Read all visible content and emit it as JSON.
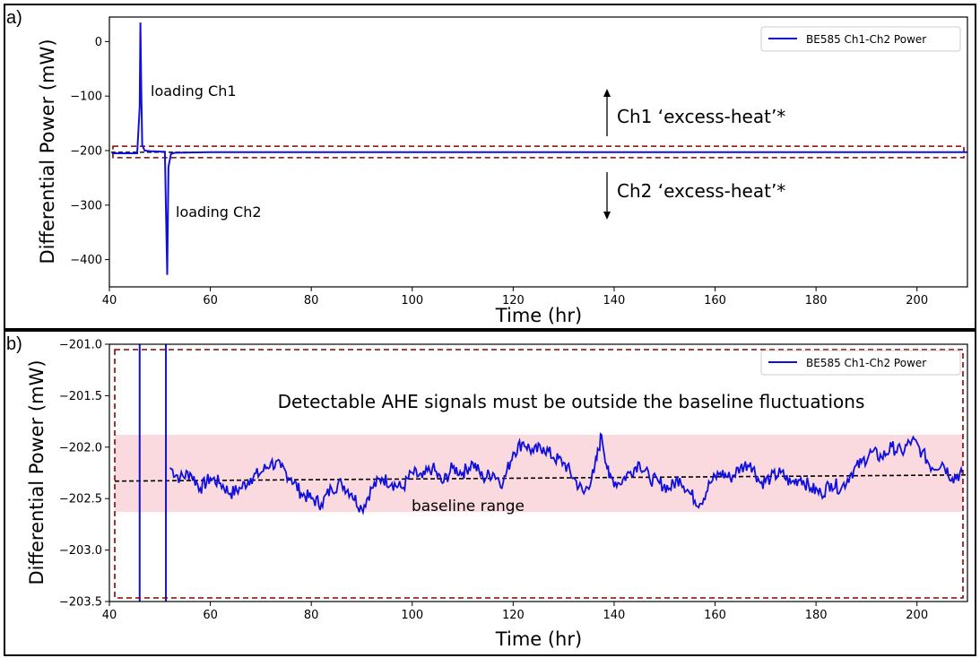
{
  "colors": {
    "series": "#1010dd",
    "baseline": "#000000",
    "dashed_box": "#8b0000",
    "band": "#f7c2c8"
  },
  "chart_data": [
    {
      "panel": "a)",
      "type": "line",
      "xlabel": "Time (hr)",
      "ylabel": "Differential Power (mW)",
      "xlim": [
        40,
        210
      ],
      "ylim": [
        -450,
        45
      ],
      "xticks": [
        40,
        60,
        80,
        100,
        120,
        140,
        160,
        180,
        200
      ],
      "yticks": [
        0,
        -100,
        -200,
        -300,
        -400
      ],
      "ytick_labels": [
        "0",
        "−100",
        "−200",
        "−300",
        "−400"
      ],
      "legend": "top-right",
      "series": [
        {
          "name": "BE585 Ch1-Ch2 Power",
          "x": [
            40.5,
            45.5,
            46.0,
            46.15,
            46.3,
            46.5,
            47.0,
            48.0,
            50.5,
            51.0,
            51.2,
            51.45,
            51.7,
            52.2,
            53.0,
            60,
            100,
            150,
            210
          ],
          "y": [
            -205,
            -205,
            -120,
            35,
            -80,
            -190,
            -200,
            -201,
            -202,
            -202,
            -300,
            -428,
            -230,
            -206,
            -204,
            -203,
            -203,
            -203,
            -203
          ]
        }
      ],
      "baseline_value": -203,
      "dashed_box_y": [
        -192,
        -213
      ],
      "annotations": {
        "loading_ch1": "loading Ch1",
        "loading_ch2": "loading Ch2",
        "ch1_excess": "Ch1 ‘excess-heat’*",
        "ch2_excess": "Ch2 ‘excess-heat’*"
      }
    },
    {
      "panel": "b)",
      "type": "line",
      "xlabel": "Time (hr)",
      "ylabel": "Differential Power (mW)",
      "xlim": [
        40,
        210
      ],
      "ylim": [
        -203.5,
        -201.0
      ],
      "xticks": [
        40,
        60,
        80,
        100,
        120,
        140,
        160,
        180,
        200
      ],
      "yticks": [
        -201.0,
        -201.5,
        -202.0,
        -202.5,
        -203.0,
        -203.5
      ],
      "ytick_labels": [
        "−201.0",
        "−201.5",
        "−202.0",
        "−202.5",
        "−203.0",
        "−203.5"
      ],
      "legend": "top-right",
      "series": [
        {
          "name": "BE585 Ch1-Ch2 Power",
          "x": [
            52,
            54,
            56,
            58,
            60,
            62,
            64,
            66,
            68,
            70,
            72,
            74,
            76,
            78,
            80,
            82,
            84,
            86,
            88,
            90,
            92,
            94,
            96,
            98,
            100,
            102,
            104,
            106,
            108,
            110,
            112,
            114,
            116,
            118,
            120,
            122,
            124,
            126,
            128,
            130,
            132,
            134,
            136,
            137.5,
            139,
            141,
            143,
            145,
            147,
            149,
            151,
            153,
            155,
            157,
            159,
            161,
            163,
            165,
            167,
            169,
            171,
            173,
            175,
            177,
            179,
            181,
            183,
            185,
            187,
            189,
            191,
            193,
            195,
            197,
            199,
            201,
            203,
            205,
            207,
            209
          ],
          "y": [
            -202.2,
            -202.3,
            -202.25,
            -202.4,
            -202.3,
            -202.35,
            -202.45,
            -202.4,
            -202.3,
            -202.25,
            -202.15,
            -202.2,
            -202.3,
            -202.45,
            -202.5,
            -202.55,
            -202.4,
            -202.35,
            -202.45,
            -202.6,
            -202.4,
            -202.3,
            -202.35,
            -202.4,
            -202.25,
            -202.3,
            -202.2,
            -202.35,
            -202.2,
            -202.25,
            -202.15,
            -202.3,
            -202.25,
            -202.35,
            -202.05,
            -201.95,
            -202.05,
            -202.0,
            -202.1,
            -202.15,
            -202.3,
            -202.45,
            -202.25,
            -201.88,
            -202.3,
            -202.35,
            -202.25,
            -202.15,
            -202.3,
            -202.35,
            -202.4,
            -202.3,
            -202.45,
            -202.55,
            -202.35,
            -202.25,
            -202.3,
            -202.2,
            -202.15,
            -202.35,
            -202.3,
            -202.25,
            -202.35,
            -202.3,
            -202.4,
            -202.45,
            -202.35,
            -202.4,
            -202.25,
            -202.15,
            -202.05,
            -202.1,
            -202.0,
            -202.05,
            -201.93,
            -202.05,
            -202.2,
            -202.15,
            -202.3,
            -202.25
          ]
        }
      ],
      "spikes_x": [
        46.0,
        51.2
      ],
      "baseline_start": -202.33,
      "baseline_end": -202.27,
      "band_y": [
        -201.88,
        -202.63
      ],
      "annotations": {
        "detectable": "Detectable AHE signals must be outside the baseline fluctuations",
        "baseline_range": "baseline range"
      }
    }
  ]
}
